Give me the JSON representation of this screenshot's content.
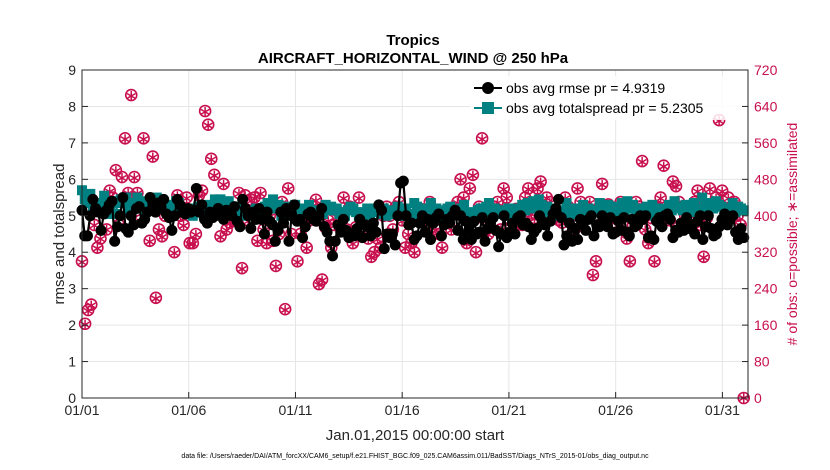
{
  "colors": {
    "rmse": "#000000",
    "spread": "#008080",
    "obs": "#c8104f",
    "axis": "#262626",
    "grid": "#e6e6e6"
  },
  "chart_data": {
    "type": "line",
    "title": "Tropics",
    "subtitle": "AIRCRAFT_HORIZONTAL_WIND @ 250 hPa",
    "xlabel": "Jan.01,2015 00:00:00 start",
    "ylabel": "rmse and totalspread",
    "ylabel_right": "# of obs: o=possible; ∗=assimilated",
    "footnote": "data file: /Users/raeder/DAI/ATM_forcXX/CAM6_setup/f.e21.FHIST_BGC.f09_025.CAM6assim.011/BadSST/Diags_NTrS_2015-01/obs_diag_output.nc",
    "xlim": [
      0,
      31.2
    ],
    "ylim": [
      0,
      9
    ],
    "ylim_right": [
      0,
      720
    ],
    "x_tick_labels": [
      "01/01",
      "01/06",
      "01/11",
      "01/16",
      "01/21",
      "01/26",
      "01/31"
    ],
    "x_tick_values": [
      0,
      5,
      10,
      15,
      20,
      25,
      30
    ],
    "y_ticks": [
      0,
      1,
      2,
      3,
      4,
      5,
      6,
      7,
      8,
      9
    ],
    "y_ticks_right": [
      0,
      80,
      160,
      240,
      320,
      400,
      480,
      560,
      640,
      720
    ],
    "legend_location": "top-right",
    "series": [
      {
        "name": "obs avg rmse pr = 4.9319",
        "axis": "left",
        "marker": "circle",
        "values": [
          5.15,
          4.45,
          4.45,
          5.0,
          5.45,
          5.2,
          5.1,
          4.6,
          5.05,
          5.15,
          5.3,
          5.4,
          4.3,
          4.7,
          5.0,
          5.5,
          4.65,
          4.55,
          5.0,
          4.75,
          5.2,
          5.25,
          4.8,
          4.9,
          5.1,
          5.5,
          5.35,
          5.1,
          5.35,
          5.25,
          5.45,
          5.05,
          4.95,
          4.6,
          5.0,
          5.45,
          5.3,
          5.1,
          5.05,
          5.2,
          5.1,
          5.15,
          5.75,
          5.1,
          5.3,
          4.9,
          4.8,
          5.1,
          4.95,
          5.0,
          5.2,
          5.1,
          4.9,
          5.15,
          5.05,
          5.0,
          5.25,
          4.85,
          4.7,
          5.45,
          5.2,
          5.0,
          4.65,
          5.1,
          4.9,
          5.2,
          4.9,
          4.5,
          5.1,
          4.85,
          4.75,
          4.3,
          4.6,
          5.1,
          4.8,
          5.2,
          4.3,
          5.0,
          5.3,
          4.85,
          4.9,
          4.4,
          4.7,
          5.05,
          5.1,
          4.9,
          4.85,
          5.0,
          5.2,
          4.7,
          4.55,
          4.3,
          3.9,
          4.3,
          4.75,
          4.55,
          4.9,
          4.6,
          4.4,
          4.5,
          4.45,
          4.65,
          4.9,
          4.4,
          4.75,
          4.7,
          4.45,
          4.8,
          4.55,
          5.3,
          5.15,
          4.1,
          4.5,
          4.4,
          4.5,
          4.2,
          5.0,
          5.9,
          5.95,
          5.0,
          4.75,
          4.8,
          4.35,
          4.45,
          4.8,
          5.0,
          4.55,
          4.9,
          4.35,
          4.8,
          4.95,
          5.05,
          4.45,
          4.75,
          4.9,
          4.8,
          5.0,
          5.15,
          4.6,
          5.0,
          4.35,
          4.85,
          4.6,
          4.35,
          4.85,
          4.5,
          4.55,
          4.95,
          4.3,
          4.65,
          4.8,
          4.95,
          4.6,
          4.15,
          4.5,
          5.0,
          4.4,
          4.55,
          4.8,
          4.5,
          4.95,
          5.0,
          4.75,
          4.8,
          4.7,
          4.35,
          4.55,
          4.65,
          5.0,
          4.85,
          4.75,
          4.45,
          4.85,
          5.05,
          5.2,
          5.45,
          4.95,
          4.2,
          4.45,
          4.8,
          4.3,
          4.65,
          4.35,
          4.9,
          4.75,
          4.6,
          4.9,
          5.0,
          4.45,
          4.75,
          4.7,
          5.0,
          4.8,
          4.7,
          4.95,
          4.5,
          4.55,
          4.85,
          4.6,
          4.95,
          4.55,
          4.45,
          4.9,
          4.7,
          4.75,
          5.0,
          4.9,
          5.0,
          4.4,
          4.45,
          4.35,
          4.85,
          4.95,
          4.7,
          5.0,
          5.05,
          4.9,
          4.4,
          4.6,
          4.55,
          4.8,
          4.6,
          4.95,
          4.65,
          4.75,
          4.5,
          4.85,
          5.0,
          4.35,
          4.7,
          5.0,
          4.65,
          4.45,
          4.5,
          4.7,
          4.9,
          5.05,
          4.75,
          4.9,
          5.0,
          4.55,
          4.35,
          4.65,
          4.4
        ]
      },
      {
        "name": "obs avg totalspread pr = 5.2305",
        "axis": "left",
        "marker": "square",
        "values": [
          5.7,
          5.45,
          5.35,
          5.6,
          5.15,
          5.35,
          5.2,
          5.3,
          5.55,
          5.05,
          5.2,
          5.4,
          5.05,
          5.35,
          5.45,
          5.4,
          5.5,
          5.15,
          5.25,
          5.35,
          5.5,
          5.4,
          5.3,
          5.1,
          5.2,
          5.45,
          5.15,
          5.5,
          5.25,
          5.4,
          5.2,
          5.3,
          5.15,
          5.25,
          5.4,
          5.35,
          5.2,
          5.1,
          5.05,
          5.2,
          5.0,
          5.1,
          5.25,
          5.1,
          5.05,
          5.2,
          5.3,
          5.15,
          5.45,
          5.2,
          5.45,
          5.3,
          5.25,
          5.4,
          5.2,
          5.1,
          5.25,
          5.15,
          5.05,
          5.0,
          5.15,
          5.0,
          5.1,
          5.2,
          5.1,
          5.1,
          5.25,
          5.35,
          5.3,
          5.45,
          5.2,
          5.3,
          5.0,
          5.1,
          5.25,
          5.15,
          5.0,
          5.3,
          5.05,
          5.1,
          5.2,
          5.1,
          5.3,
          5.15,
          5.05,
          5.15,
          5.1,
          5.05,
          5.3,
          5.15,
          5.25,
          5.15,
          5.2,
          5.05,
          5.1,
          5.0,
          5.15,
          5.25,
          5.2,
          5.1,
          5.0,
          5.05,
          5.1,
          5.2,
          5.0,
          5.1,
          5.2,
          5.15,
          5.05,
          5.2,
          5.0,
          5.15,
          5.1,
          5.05,
          5.25,
          5.0,
          5.15,
          5.2,
          5.0,
          5.05,
          5.35,
          5.25,
          5.0,
          5.2,
          5.05,
          5.15,
          5.35,
          5.05,
          5.2,
          5.0,
          5.15,
          5.1,
          5.2,
          5.25,
          5.05,
          5.1,
          5.15,
          5.2,
          5.3,
          5.05,
          5.1,
          5.0,
          5.05,
          5.15,
          5.2,
          5.1,
          5.25,
          5.35,
          5.15,
          5.2,
          5.05,
          5.1,
          5.15,
          5.05,
          5.2,
          5.0,
          5.1,
          5.2,
          5.05,
          5.3,
          5.15,
          5.35,
          5.2,
          5.4,
          5.25,
          5.45,
          5.3,
          5.15,
          5.25,
          5.1,
          5.0,
          5.2,
          5.1,
          5.05,
          5.15,
          5.35,
          5.0,
          5.1,
          5.2,
          5.05,
          5.15,
          5.3,
          5.1,
          5.2,
          5.05,
          5.15,
          5.1,
          5.35,
          5.15,
          5.2,
          5.3,
          5.1,
          5.25,
          5.05,
          5.2,
          5.35,
          5.15,
          5.4,
          5.2,
          5.3,
          5.1,
          5.2,
          5.05,
          5.15,
          5.25,
          5.1,
          5.3,
          5.0,
          5.15,
          5.2,
          5.05,
          5.1,
          5.3,
          5.15,
          5.4,
          5.2,
          5.25,
          5.15,
          5.3,
          5.2,
          5.1,
          5.35,
          5.2,
          5.15,
          5.5,
          5.3,
          5.25,
          5.35,
          5.2,
          5.4,
          5.3,
          5.25,
          5.2,
          5.15,
          5.2,
          5.35,
          5.1,
          5.25,
          5.2,
          5.15
        ]
      },
      {
        "name": "possible",
        "axis": "right",
        "marker": "open-circle",
        "values": [
          300,
          163,
          193,
          205,
          380,
          330,
          350,
          410,
          370,
          455,
          440,
          500,
          380,
          485,
          570,
          450,
          665,
          485,
          450,
          390,
          570,
          420,
          345,
          530,
          220,
          370,
          355,
          400,
          405,
          420,
          320,
          445,
          400,
          380,
          440,
          340,
          340,
          360,
          445,
          455,
          630,
          600,
          525,
          490,
          420,
          355,
          470,
          370,
          385,
          390,
          390,
          450,
          285,
          445,
          390,
          435,
          440,
          345,
          450,
          370,
          340,
          400,
          345,
          290,
          360,
          430,
          195,
          460,
          360,
          420,
          300,
          360,
          395,
          330,
          390,
          420,
          435,
          250,
          260,
          375,
          390,
          330,
          380,
          410,
          395,
          440,
          370,
          420,
          340,
          375,
          440,
          400,
          370,
          350,
          310,
          320,
          350,
          330,
          400,
          420,
          400,
          370,
          420,
          430,
          390,
          330,
          360,
          340,
          320,
          400,
          415,
          390,
          395,
          430,
          410,
          370,
          360,
          330,
          400,
          390,
          370,
          415,
          430,
          480,
          440,
          340,
          460,
          490,
          320,
          420,
          570,
          390,
          360,
          400,
          420,
          430,
          370,
          460,
          440,
          390,
          410,
          415,
          390,
          380,
          440,
          460,
          405,
          395,
          460,
          475,
          420,
          440,
          430,
          400,
          410,
          390,
          385,
          440,
          420,
          400,
          370,
          460,
          430,
          410,
          420,
          430,
          270,
          300,
          380,
          470,
          385,
          425,
          395,
          410,
          380,
          430,
          415,
          350,
          300,
          380,
          430,
          420,
          520,
          370,
          340,
          395,
          300,
          420,
          440,
          510,
          400,
          390,
          475,
          465,
          430,
          420,
          400,
          420,
          385,
          430,
          455,
          380,
          310,
          395,
          460,
          420,
          440,
          610,
          455,
          390,
          440,
          410,
          430,
          400,
          380,
          0
        ]
      },
      {
        "name": "assimilated",
        "axis": "right",
        "marker": "asterisk",
        "values": [
          298,
          161,
          191,
          203,
          379,
          328,
          349,
          408,
          369,
          453,
          438,
          498,
          378,
          483,
          568,
          449,
          663,
          483,
          449,
          388,
          568,
          418,
          343,
          528,
          218,
          368,
          353,
          398,
          403,
          418,
          318,
          443,
          398,
          378,
          438,
          338,
          338,
          358,
          443,
          453,
          628,
          598,
          523,
          488,
          418,
          353,
          468,
          368,
          383,
          388,
          388,
          448,
          283,
          443,
          388,
          433,
          438,
          343,
          448,
          368,
          338,
          398,
          343,
          288,
          358,
          428,
          193,
          458,
          358,
          418,
          298,
          358,
          393,
          328,
          388,
          418,
          433,
          248,
          258,
          373,
          388,
          328,
          378,
          408,
          393,
          438,
          368,
          418,
          338,
          373,
          438,
          398,
          368,
          348,
          308,
          318,
          348,
          328,
          398,
          418,
          398,
          368,
          418,
          428,
          388,
          328,
          358,
          338,
          318,
          398,
          413,
          388,
          393,
          428,
          408,
          368,
          358,
          328,
          398,
          388,
          368,
          413,
          428,
          478,
          438,
          338,
          458,
          488,
          318,
          418,
          568,
          388,
          358,
          398,
          418,
          428,
          368,
          458,
          438,
          388,
          408,
          413,
          388,
          378,
          438,
          458,
          403,
          393,
          458,
          473,
          418,
          438,
          428,
          398,
          408,
          388,
          383,
          438,
          418,
          398,
          368,
          458,
          428,
          408,
          418,
          428,
          268,
          298,
          378,
          468,
          383,
          423,
          393,
          408,
          378,
          428,
          413,
          348,
          298,
          378,
          428,
          418,
          518,
          368,
          338,
          393,
          298,
          418,
          438,
          508,
          398,
          388,
          473,
          463,
          428,
          418,
          398,
          418,
          383,
          428,
          453,
          378,
          308,
          393,
          458,
          418,
          438,
          608,
          453,
          388,
          438,
          408,
          428,
          398,
          378,
          0
        ]
      }
    ]
  }
}
